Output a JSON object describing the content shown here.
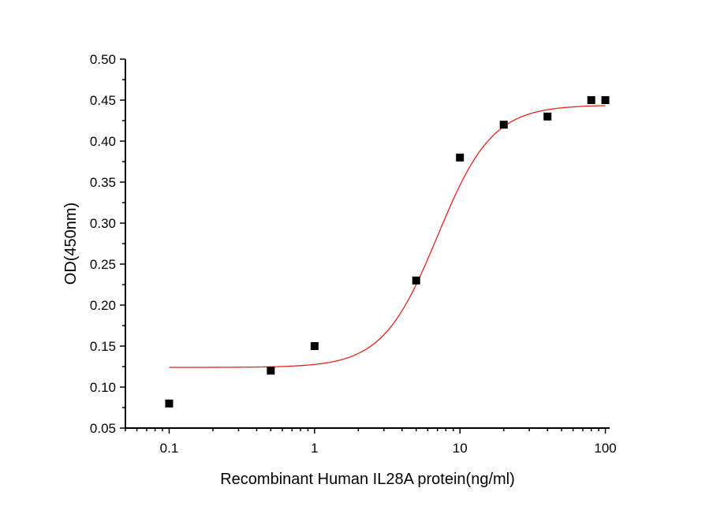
{
  "chart_data": {
    "type": "scatter",
    "title": "",
    "xlabel": "Recombinant Human IL28A protein(ng/ml)",
    "ylabel": "OD(450nm)",
    "xscale": "log",
    "xlim": [
      0.05,
      107
    ],
    "ylim": [
      0.05,
      0.5
    ],
    "x_ticks": [
      0.1,
      1,
      10,
      100
    ],
    "x_tick_labels": [
      "0.1",
      "1",
      "10",
      "100"
    ],
    "y_ticks": [
      0.05,
      0.1,
      0.15,
      0.2,
      0.25,
      0.3,
      0.35,
      0.4,
      0.45,
      0.5
    ],
    "y_tick_labels": [
      "0.05",
      "0.10",
      "0.15",
      "0.20",
      "0.25",
      "0.30",
      "0.35",
      "0.40",
      "0.45",
      "0.50"
    ],
    "grid": false,
    "legend": "none",
    "series": [
      {
        "marker": "square",
        "color": "#000000",
        "x": [
          0.1,
          0.5,
          1,
          5,
          10,
          20,
          40,
          80,
          100
        ],
        "y": [
          0.08,
          0.12,
          0.15,
          0.23,
          0.38,
          0.42,
          0.43,
          0.45,
          0.45
        ]
      }
    ],
    "fit_curve": {
      "model": "4-parameter logistic",
      "color": "#e8231f",
      "bottom": 0.124,
      "top": 0.444,
      "ec50": 7.0,
      "hill": 2.3,
      "x_range": [
        0.1,
        100
      ]
    }
  }
}
